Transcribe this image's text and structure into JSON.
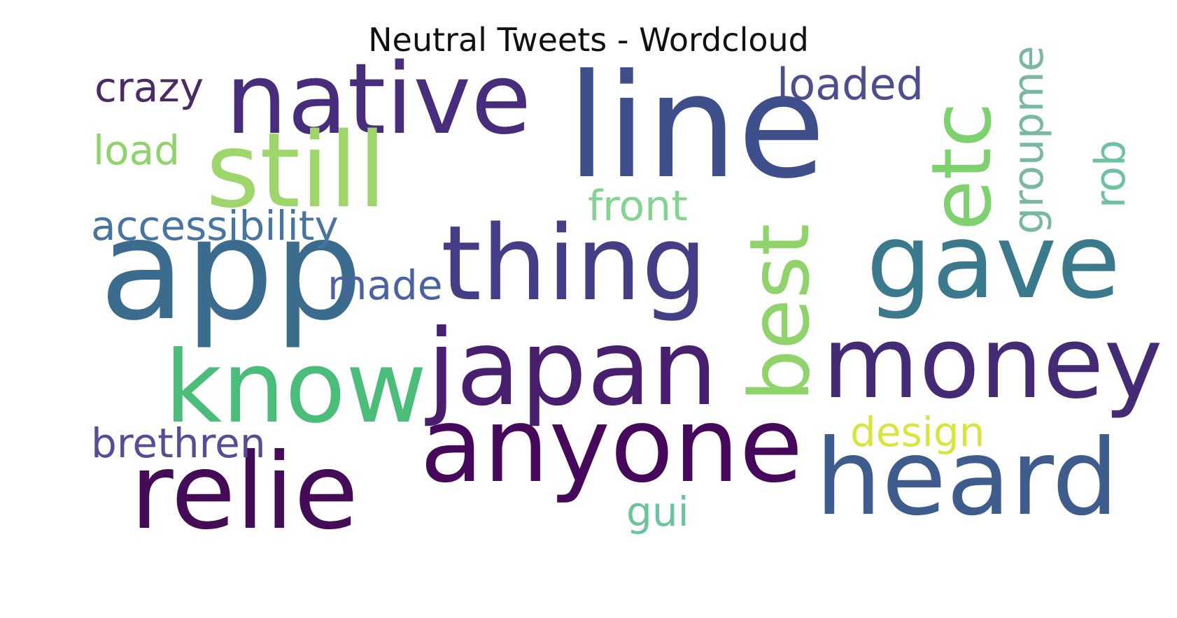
{
  "title": "Neutral Tweets - Wordcloud",
  "words": [
    {
      "text": "line",
      "color": "#3e4f8c"
    },
    {
      "text": "native",
      "color": "#472d7b"
    },
    {
      "text": "app",
      "color": "#3b6c8e"
    },
    {
      "text": "still",
      "color": "#9ed66c"
    },
    {
      "text": "thing",
      "color": "#433e85"
    },
    {
      "text": "japan",
      "color": "#481e6f"
    },
    {
      "text": "anyone",
      "color": "#45085b"
    },
    {
      "text": "know",
      "color": "#4bbd7a"
    },
    {
      "text": "relie",
      "color": "#440b56"
    },
    {
      "text": "heard",
      "color": "#3e5c8c"
    },
    {
      "text": "money",
      "color": "#452b76"
    },
    {
      "text": "gave",
      "color": "#3a7a8c"
    },
    {
      "text": "best",
      "color": "#8fd36a"
    },
    {
      "text": "etc",
      "color": "#7fd16f"
    },
    {
      "text": "loaded",
      "color": "#4d4f8c"
    },
    {
      "text": "crazy",
      "color": "#4b2a66"
    },
    {
      "text": "load",
      "color": "#8fd36a"
    },
    {
      "text": "accessibility",
      "color": "#4a74a0"
    },
    {
      "text": "made",
      "color": "#4b62a0"
    },
    {
      "text": "front",
      "color": "#84d392"
    },
    {
      "text": "groupme",
      "color": "#7ab8a2"
    },
    {
      "text": "rob",
      "color": "#6cc39e"
    },
    {
      "text": "brethren",
      "color": "#5a4c94"
    },
    {
      "text": "design",
      "color": "#d9e53f"
    },
    {
      "text": "gui",
      "color": "#6cc39e"
    }
  ]
}
